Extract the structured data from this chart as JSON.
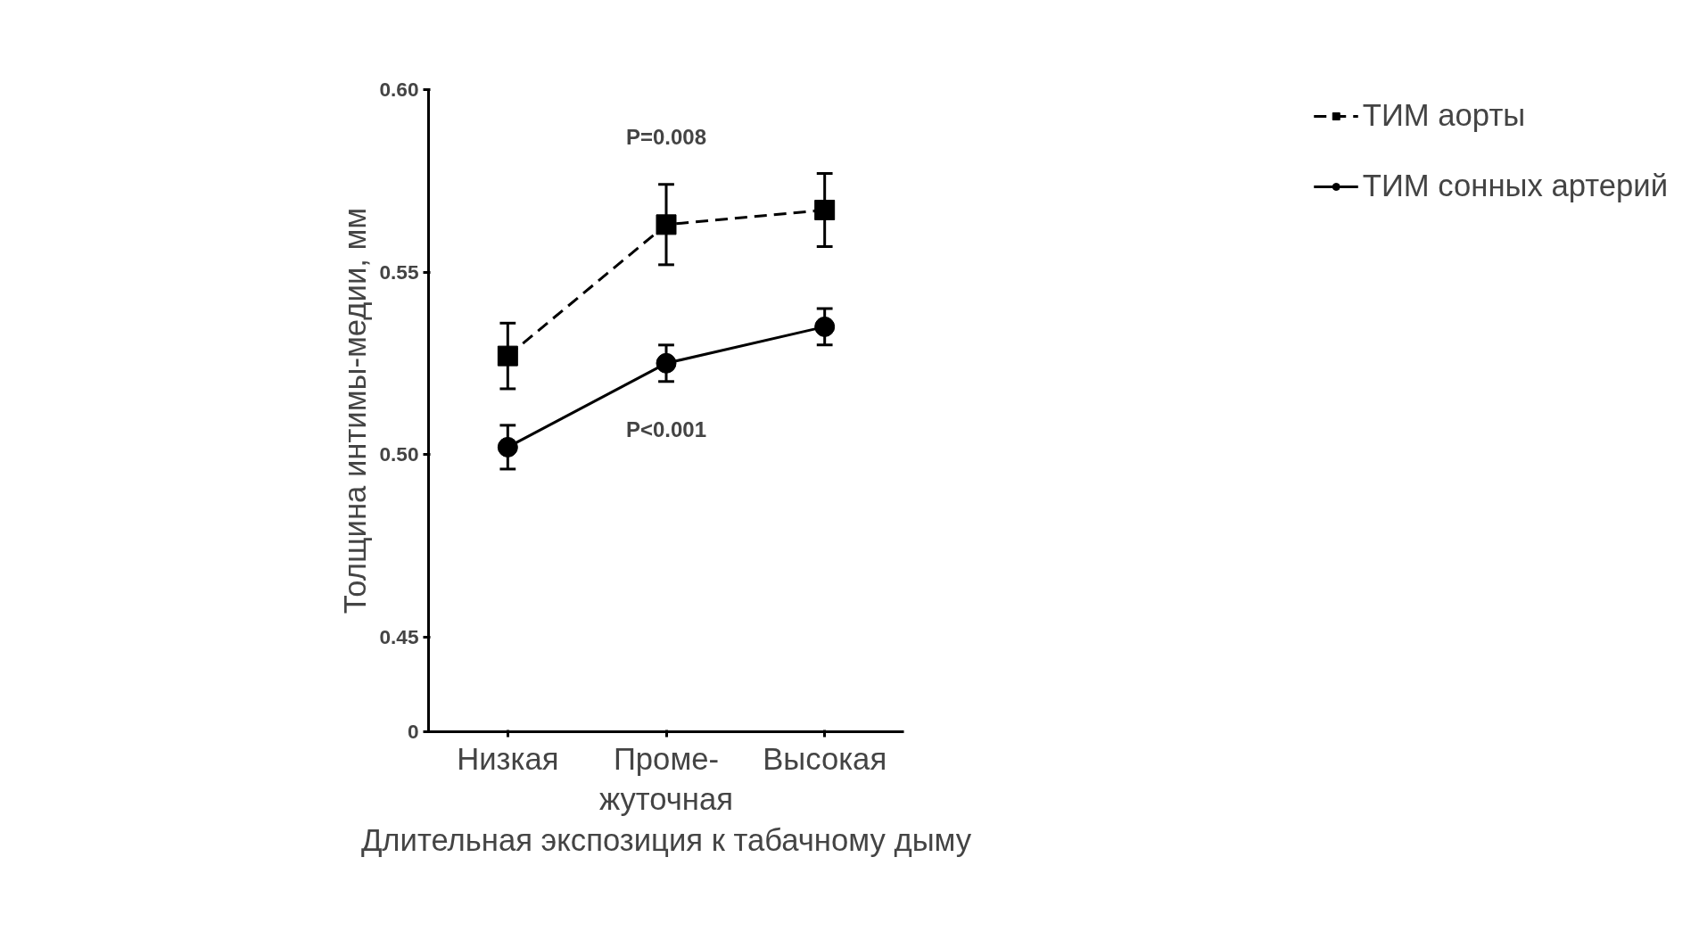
{
  "chart_data": {
    "type": "line",
    "xlabel": "Длительная экспозиция к табачному дыму",
    "ylabel": "Толщина интимы-медии, мм",
    "categories": [
      "Низкая",
      "Проме-\nжуточная",
      "Высокая"
    ],
    "series": [
      {
        "name": "ТИМ аорты",
        "color": "#000000",
        "values": [
          0.527,
          0.563,
          0.567
        ],
        "errors": [
          0.009,
          0.011,
          0.01
        ],
        "marker": "square",
        "line_style": "dashed"
      },
      {
        "name": "ТИМ сонных артерий",
        "color": "#000000",
        "values": [
          0.502,
          0.525,
          0.535
        ],
        "errors": [
          0.006,
          0.005,
          0.005
        ],
        "marker": "circle",
        "line_style": "solid"
      }
    ],
    "ylim": [
      0.424,
      0.6
    ],
    "yticks": [
      {
        "value": 0.424,
        "label": "0"
      },
      0.45,
      {
        "value": 0.5,
        "label": "0.50"
      },
      0.55,
      {
        "value": 0.6,
        "label": "0.60"
      }
    ],
    "annotations": [
      "P=0.008",
      "P<0.001"
    ],
    "legend": "right",
    "grid": false
  }
}
